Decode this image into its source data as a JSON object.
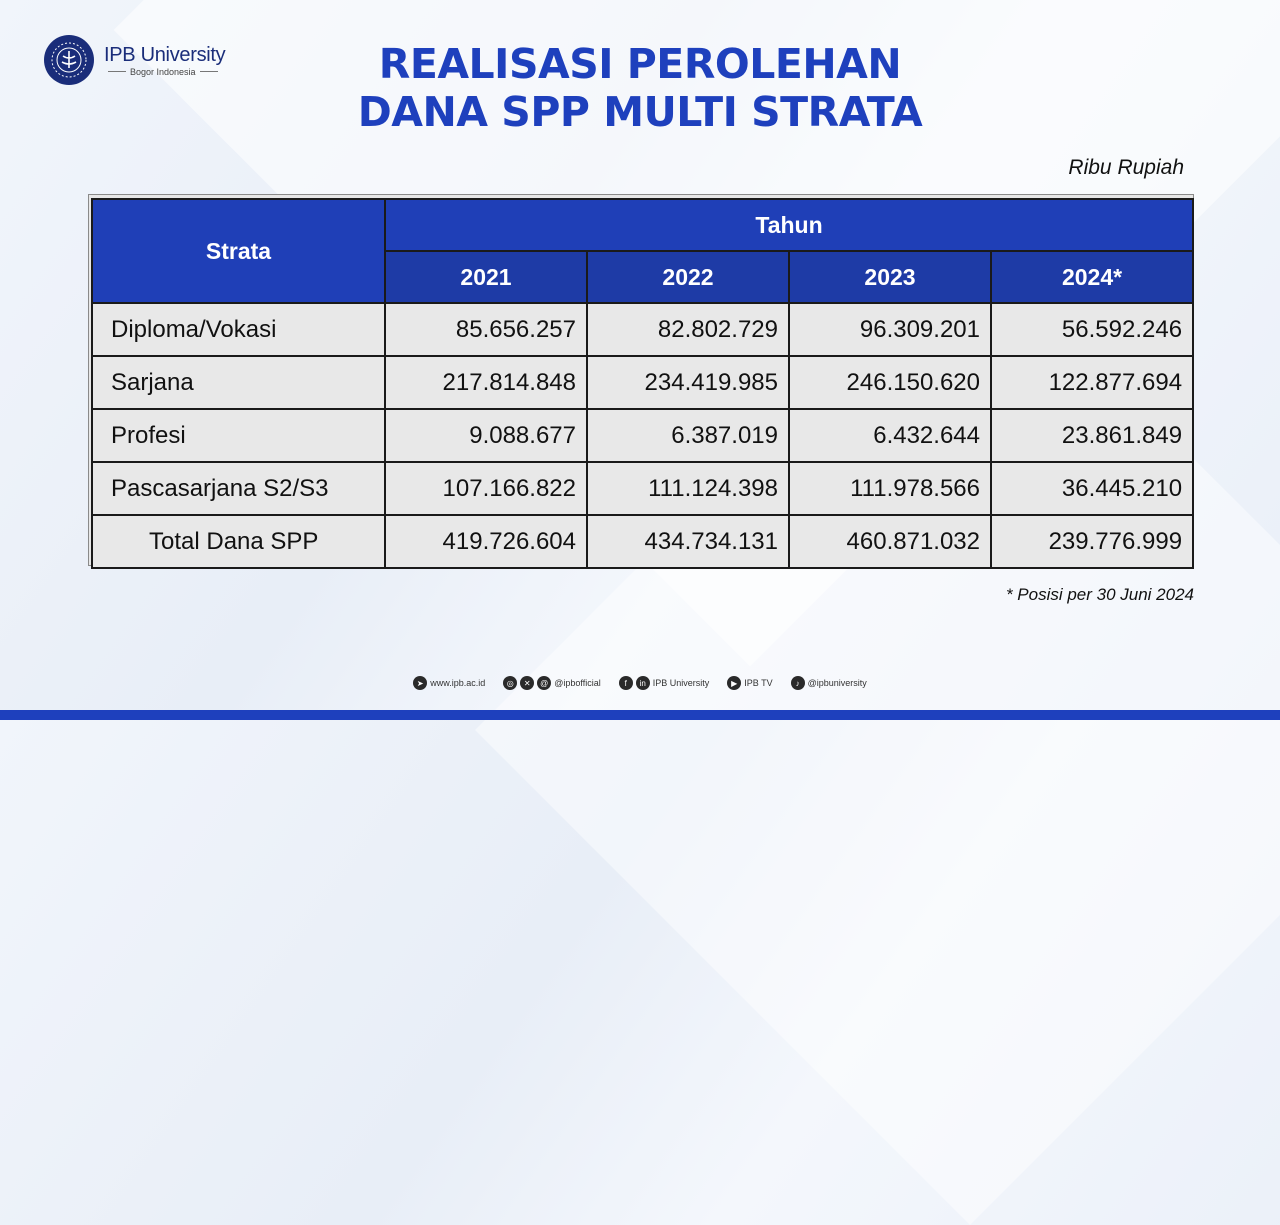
{
  "brand": {
    "name": "IPB University",
    "sub": "Bogor Indonesia"
  },
  "title": {
    "line1": "REALISASI PEROLEHAN",
    "line2": "DANA SPP MULTI STRATA"
  },
  "unit": "Ribu Rupiah",
  "table": {
    "col_label": "Strata",
    "group_label": "Tahun",
    "years": [
      "2021",
      "2022",
      "2023",
      "2024*"
    ],
    "rows": [
      {
        "label": "Diploma/Vokasi",
        "values": [
          "85.656.257",
          "82.802.729",
          "96.309.201",
          "56.592.246"
        ]
      },
      {
        "label": "Sarjana",
        "values": [
          "217.814.848",
          "234.419.985",
          "246.150.620",
          "122.877.694"
        ]
      },
      {
        "label": "Profesi",
        "values": [
          "9.088.677",
          "6.387.019",
          "6.432.644",
          "23.861.849"
        ]
      },
      {
        "label": "Pascasarjana S2/S3",
        "values": [
          "107.166.822",
          "111.124.398",
          "111.978.566",
          "36.445.210"
        ]
      }
    ],
    "total": {
      "label": "Total Dana SPP",
      "values": [
        "419.726.604",
        "434.734.131",
        "460.871.032",
        "239.776.999"
      ]
    }
  },
  "note": "* Posisi per 30 Juni 2024",
  "footer": {
    "website": "www.ipb.ac.id",
    "social1": "@ipbofficial",
    "social2": "IPB University",
    "social3": "IPB TV",
    "social4": "@ipbuniversity"
  },
  "colors": {
    "primary": "#1e40bd",
    "header_bg": "#1f3fb7",
    "cell_bg": "#e8e8e8"
  }
}
